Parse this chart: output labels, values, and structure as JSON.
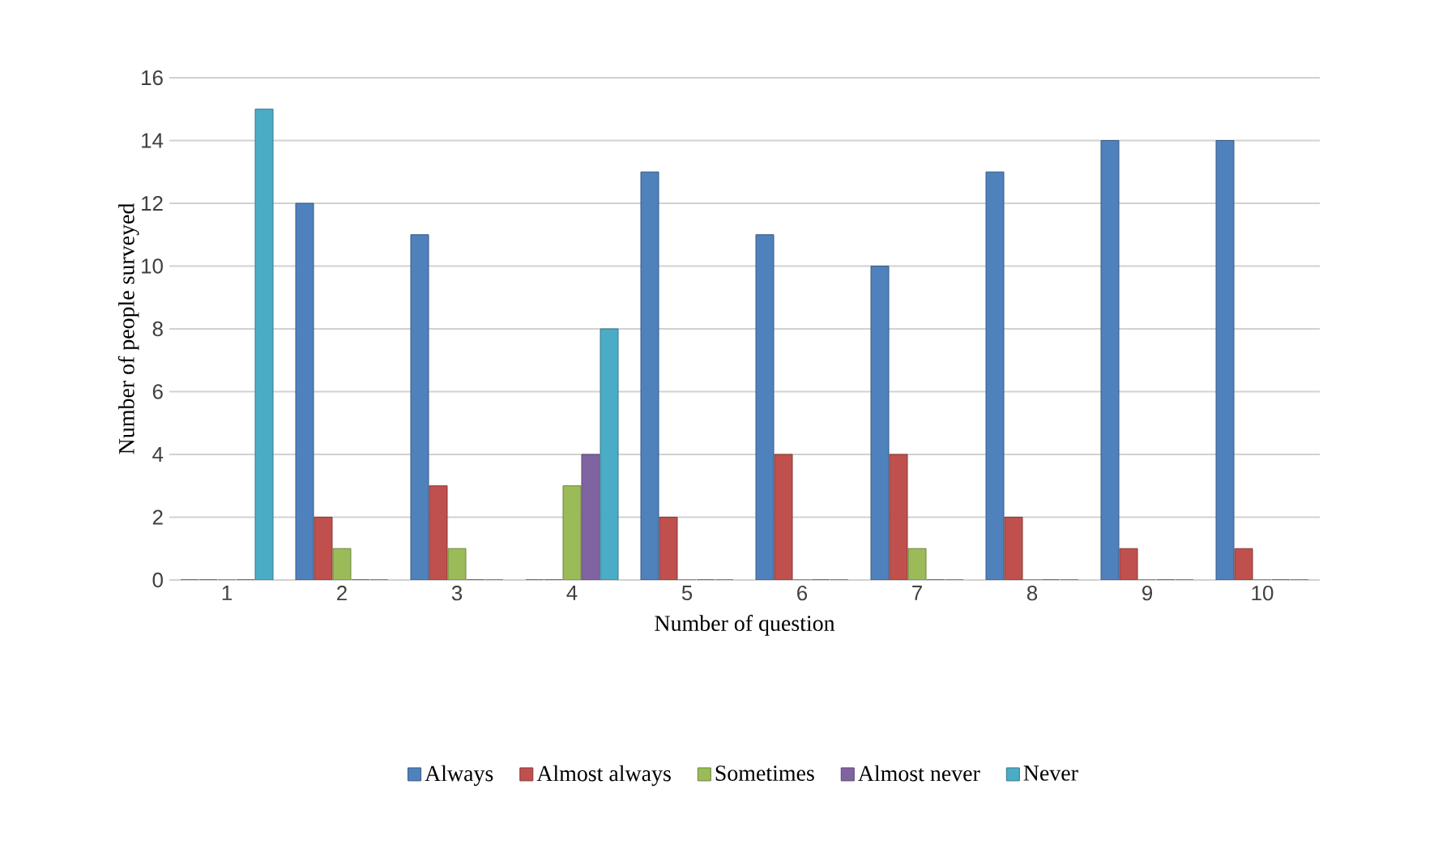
{
  "chart_data": {
    "type": "bar",
    "xlabel": "Number of question",
    "ylabel": "Number of people surveyed",
    "categories": [
      "1",
      "2",
      "3",
      "4",
      "5",
      "6",
      "7",
      "8",
      "9",
      "10"
    ],
    "series": [
      {
        "name": "Always",
        "color": "#4f81bd",
        "values": [
          0,
          12,
          11,
          0,
          13,
          11,
          10,
          13,
          14,
          14
        ]
      },
      {
        "name": "Almost always",
        "color": "#c0504d",
        "values": [
          0,
          2,
          3,
          0,
          2,
          4,
          4,
          2,
          1,
          1
        ]
      },
      {
        "name": "Sometimes",
        "color": "#9bbb59",
        "values": [
          0,
          1,
          1,
          3,
          0,
          0,
          1,
          0,
          0,
          0
        ]
      },
      {
        "name": "Almost never",
        "color": "#8064a2",
        "values": [
          0,
          0,
          0,
          4,
          0,
          0,
          0,
          0,
          0,
          0
        ]
      },
      {
        "name": "Never",
        "color": "#4bacc6",
        "values": [
          15,
          0,
          0,
          8,
          0,
          0,
          0,
          0,
          0,
          0
        ]
      }
    ],
    "ylim": [
      0,
      16
    ],
    "yticks": [
      0,
      2,
      4,
      6,
      8,
      10,
      12,
      14,
      16
    ],
    "grid": "y",
    "legend": "bottom"
  }
}
